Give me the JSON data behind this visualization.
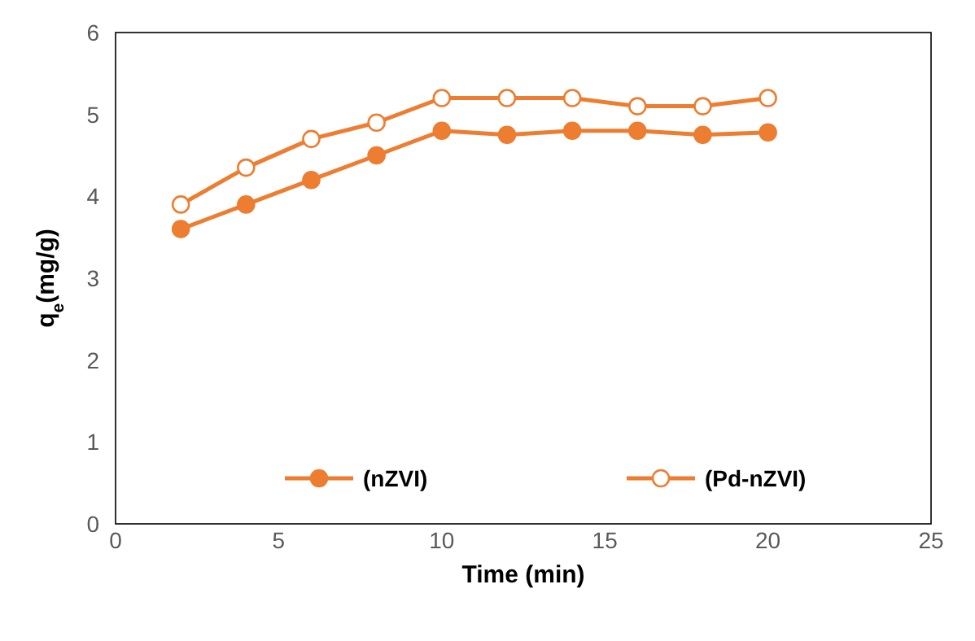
{
  "chart_data": {
    "type": "line",
    "xlabel": "Time (min)",
    "ylabel": "q$_{e}$(mg/g)",
    "xlim": [
      0,
      25
    ],
    "xticks": [
      0,
      5,
      10,
      15,
      20,
      25
    ],
    "ylim": [
      0,
      6
    ],
    "yticks": [
      0,
      1,
      2,
      3,
      4,
      5,
      6
    ],
    "legend": "bottom",
    "grid": false,
    "series": [
      {
        "name": "(nZVI)",
        "color": "#ed7d31",
        "marker": "circle",
        "x": [
          2,
          4,
          6,
          8,
          10,
          12,
          14,
          16,
          18,
          20
        ],
        "values": [
          3.6,
          3.9,
          4.2,
          4.5,
          4.8,
          4.75,
          4.8,
          4.8,
          4.75,
          4.78
        ]
      },
      {
        "name": "(Pd-nZVI)",
        "color": "#ed7d31",
        "marker": "circle",
        "x": [
          2,
          4,
          6,
          8,
          10,
          12,
          14,
          16,
          18,
          20
        ],
        "values": [
          3.9,
          4.35,
          4.7,
          4.9,
          5.2,
          5.2,
          5.2,
          5.1,
          5.1,
          5.2
        ]
      }
    ]
  }
}
